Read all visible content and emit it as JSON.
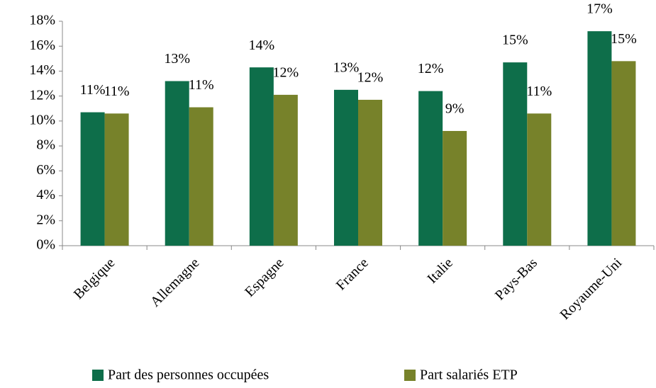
{
  "chart_data": {
    "type": "bar",
    "categories": [
      "Belgique",
      "Allemagne",
      "Espagne",
      "France",
      "Italie",
      "Pays-Bas",
      "Royaume-Uni"
    ],
    "series": [
      {
        "name": "Part des personnes occupées",
        "color": "#0e6e4a",
        "values": [
          10.7,
          13.2,
          14.3,
          12.5,
          12.4,
          14.7,
          17.2
        ],
        "value_labels": [
          "11%",
          "13%",
          "14%",
          "13%",
          "12%",
          "15%",
          "17%"
        ]
      },
      {
        "name": "Part salariés ETP",
        "color": "#77822a",
        "values": [
          10.6,
          11.1,
          12.1,
          11.7,
          9.2,
          10.6,
          14.8
        ],
        "value_labels": [
          "11%",
          "11%",
          "12%",
          "12%",
          "9%",
          "11%",
          "15%"
        ]
      }
    ],
    "ylim": [
      0,
      18
    ],
    "yticks": [
      {
        "value": 0,
        "label": "0%"
      },
      {
        "value": 2,
        "label": "2%"
      },
      {
        "value": 4,
        "label": "4%"
      },
      {
        "value": 6,
        "label": "6%"
      },
      {
        "value": 8,
        "label": "8%"
      },
      {
        "value": 10,
        "label": "10%"
      },
      {
        "value": 12,
        "label": "12%"
      },
      {
        "value": 14,
        "label": "14%"
      },
      {
        "value": 16,
        "label": "16%"
      },
      {
        "value": 18,
        "label": "18%"
      }
    ],
    "grid": false,
    "legend": "bottom"
  }
}
